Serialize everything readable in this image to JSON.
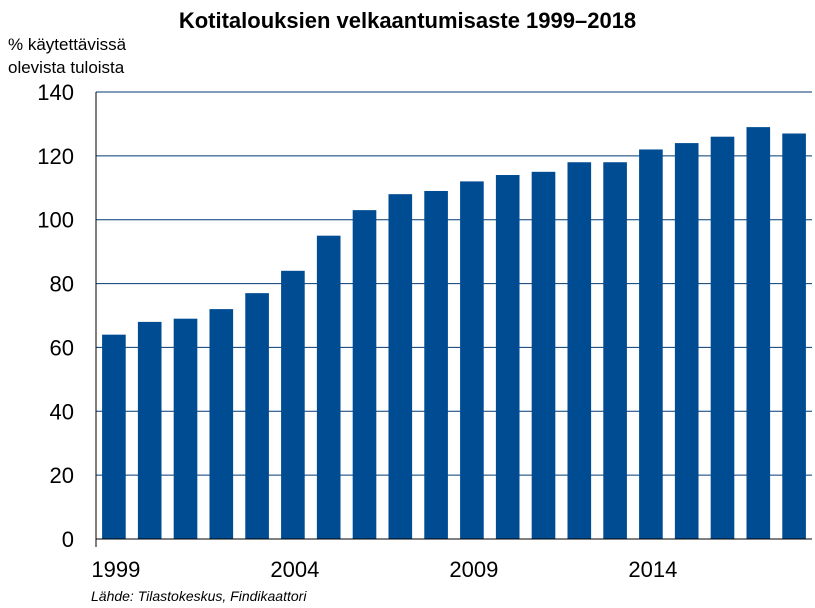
{
  "chart_data": {
    "type": "bar",
    "title": "Kotitalouksien velkaantumisaste 1999–2018",
    "ylabel": [
      "% käytettävissä",
      "olevista tuloista"
    ],
    "xlabel": "",
    "source": "Lähde: Tilastokeskus, Findikaattori",
    "categories": [
      "1999",
      "2000",
      "2001",
      "2002",
      "2003",
      "2004",
      "2005",
      "2006",
      "2007",
      "2008",
      "2009",
      "2010",
      "2011",
      "2012",
      "2013",
      "2014",
      "2015",
      "2016",
      "2017",
      "2018"
    ],
    "x_tick_labels": [
      "1999",
      "2004",
      "2009",
      "2014"
    ],
    "values": [
      64,
      68,
      69,
      72,
      77,
      84,
      95,
      103,
      108,
      109,
      112,
      114,
      115,
      118,
      118,
      122,
      124,
      126,
      129,
      127
    ],
    "ylim": [
      0,
      140
    ],
    "y_ticks": [
      0,
      20,
      40,
      60,
      80,
      100,
      120,
      140
    ],
    "grid": true,
    "legend": "none",
    "colors": {
      "bar": "#004C93",
      "grid": "#003A73",
      "axis": "#000000"
    }
  }
}
